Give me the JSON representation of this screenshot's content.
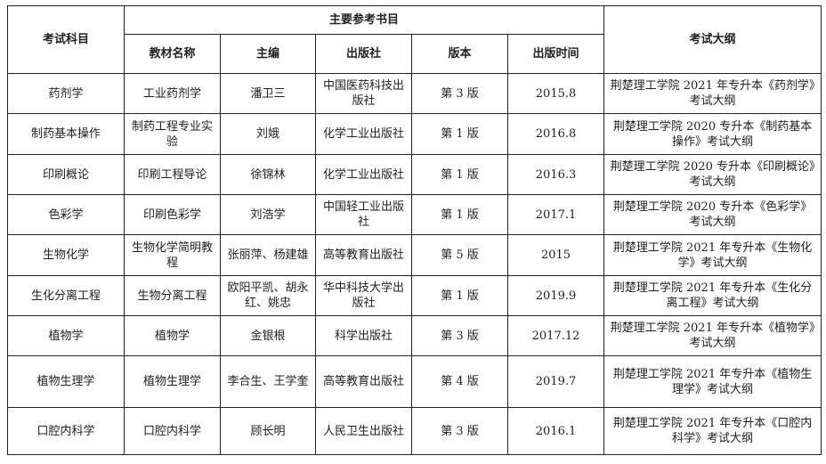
{
  "headers": {
    "subject": "考试科目",
    "reference_books": "主要参考书目",
    "syllabus": "考试大纲",
    "book_name": "教材名称",
    "editor": "主编",
    "publisher": "出版社",
    "edition": "版本",
    "pub_date": "出版时间"
  },
  "rows": [
    {
      "subject": "药剂学",
      "book": "工业药剂学",
      "editor": "潘卫三",
      "publisher": "中国医药科技出版社",
      "edition": "第 3 版",
      "date": "2015.8",
      "syllabus": "荆楚理工学院 2021 年专升本《药剂学》考试大纲"
    },
    {
      "subject": "制药基本操作",
      "book": "制药工程专业实验",
      "editor": "刘娥",
      "publisher": "化学工业出版社",
      "edition": "第 1 版",
      "date": "2016.8",
      "syllabus": "荆楚理工学院 2020 专升本《制药基本操作》考试大纲"
    },
    {
      "subject": "印刷概论",
      "book": "印刷工程导论",
      "editor": "徐锦林",
      "publisher": "化学工业出版社",
      "edition": "第 1 版",
      "date": "2016.3",
      "syllabus": "荆楚理工学院 2020 专升本《印刷概论》考试大纲"
    },
    {
      "subject": "色彩学",
      "book": "印刷色彩学",
      "editor": "刘浩学",
      "publisher": "中国轻工业出版社",
      "edition": "第 1 版",
      "date": "2017.1",
      "syllabus": "荆楚理工学院 2020 专升本《色彩学》考试大纲"
    },
    {
      "subject": "生物化学",
      "book": "生物化学简明教程",
      "editor": "张丽萍、杨建雄",
      "publisher": "高等教育出版社",
      "edition": "第 5 版",
      "date": "2015",
      "syllabus": "荆楚理工学院 2021 年专升本《生物化学》考试大纲"
    },
    {
      "subject": "生化分离工程",
      "book": "生物分离工程",
      "editor": "欧阳平凯、胡永红、姚忠",
      "publisher": "华中科技大学出版社",
      "edition": "第 1 版",
      "date": "2019.9",
      "syllabus": "荆楚理工学院 2021 年专升本《生化分离工程》考试大纲"
    },
    {
      "subject": "植物学",
      "book": "植物学",
      "editor": "金银根",
      "publisher": "科学出版社",
      "edition": "第 3 版",
      "date": "2017.12",
      "syllabus": "荆楚理工学院 2021 年专升本《植物学》考试大纲"
    },
    {
      "subject": "植物生理学",
      "book": "植物生理学",
      "editor": "李合生、王学奎",
      "publisher": "高等教育出版社",
      "edition": "第 4 版",
      "date": "2019.7",
      "syllabus": "荆楚理工学院 2021 年专升本《植物生理学》考试大纲"
    },
    {
      "subject": "口腔内科学",
      "book": "口腔内科学",
      "editor": "顾长明",
      "publisher": "人民卫生出版社",
      "edition": "第 3 版",
      "date": "2016.1",
      "syllabus": "荆楚理工学院 2021 年专升本《口腔内科学》考试大纲"
    }
  ]
}
